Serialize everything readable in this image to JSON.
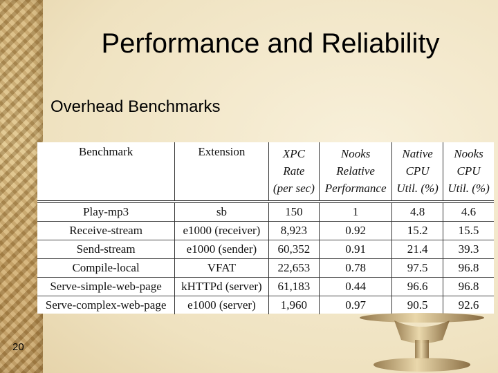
{
  "slide": {
    "title": "Performance and Reliability",
    "subtitle": "Overhead Benchmarks",
    "number": "20"
  },
  "table": {
    "headers": [
      {
        "lines": [
          "Benchmark"
        ]
      },
      {
        "lines": [
          "Extension"
        ]
      },
      {
        "lines": [
          "XPC",
          "Rate",
          "(per sec)"
        ]
      },
      {
        "lines": [
          "Nooks",
          "Relative",
          "Performance"
        ]
      },
      {
        "lines": [
          "Native",
          "CPU",
          "Util. (%)"
        ]
      },
      {
        "lines": [
          "Nooks",
          "CPU",
          "Util. (%)"
        ]
      }
    ],
    "rows": [
      [
        "Play-mp3",
        "sb",
        "150",
        "1",
        "4.8",
        "4.6"
      ],
      [
        "Receive-stream",
        "e1000 (receiver)",
        "8,923",
        "0.92",
        "15.2",
        "15.5"
      ],
      [
        "Send-stream",
        "e1000 (sender)",
        "60,352",
        "0.91",
        "21.4",
        "39.3"
      ],
      [
        "Compile-local",
        "VFAT",
        "22,653",
        "0.78",
        "97.5",
        "96.8"
      ],
      [
        "Serve-simple-web-page",
        "kHTTPd (server)",
        "61,183",
        "0.44",
        "96.6",
        "96.8"
      ],
      [
        "Serve-complex-web-page",
        "e1000 (server)",
        "1,960",
        "0.97",
        "90.5",
        "92.6"
      ]
    ]
  },
  "colors": {
    "background": "#f4ead0",
    "border_strip": "#c9a66b",
    "text": "#000000"
  }
}
